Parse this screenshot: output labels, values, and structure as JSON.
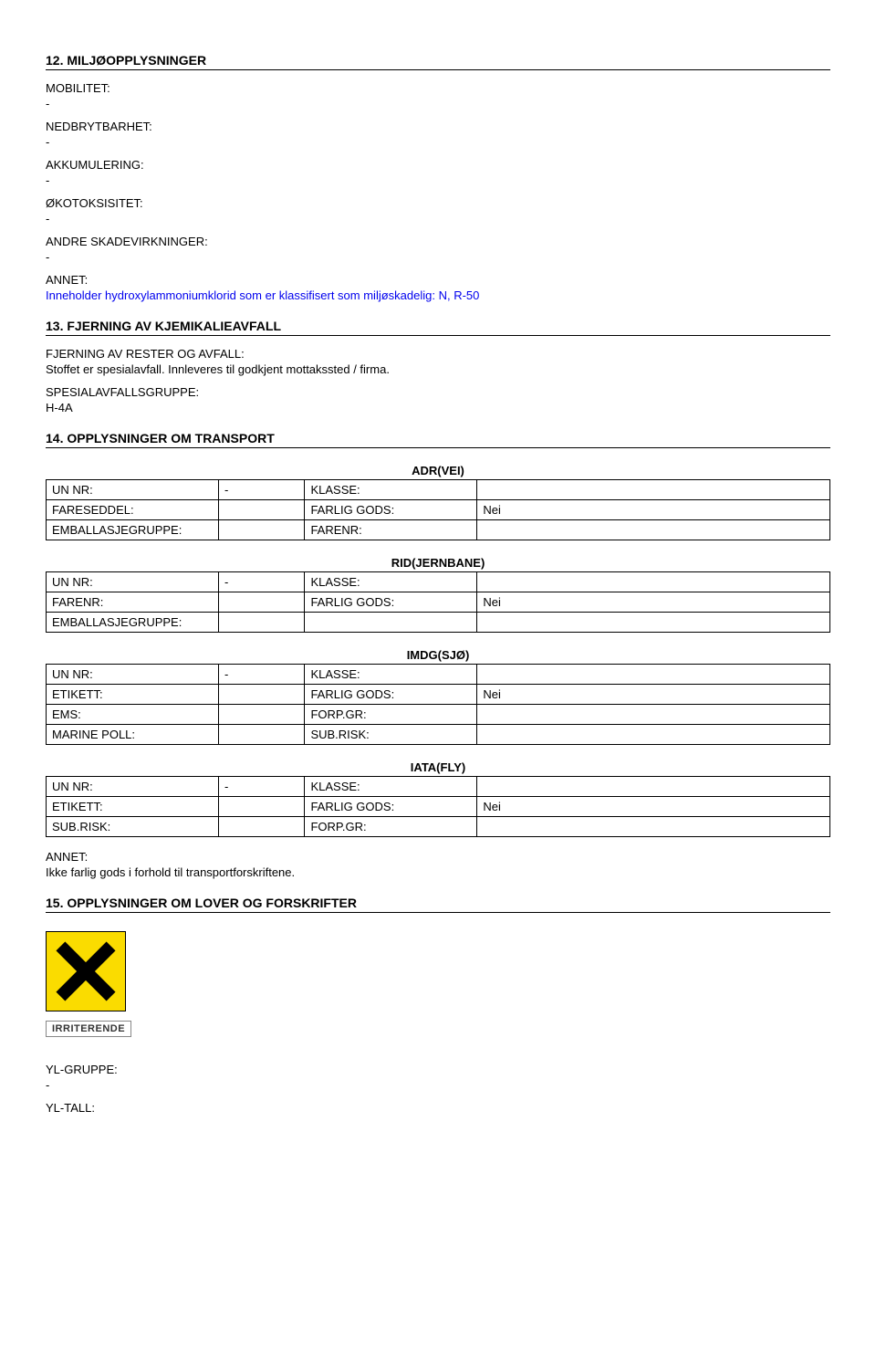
{
  "section12": {
    "heading": "12. MILJØOPPLYSNINGER",
    "fields": [
      {
        "label": "MOBILITET:",
        "value": "-"
      },
      {
        "label": "NEDBRYTBARHET:",
        "value": "-"
      },
      {
        "label": "AKKUMULERING:",
        "value": "-"
      },
      {
        "label": "ØKOTOKSISITET:",
        "value": "-"
      },
      {
        "label": "ANDRE SKADEVIRKNINGER:",
        "value": "-"
      }
    ],
    "annet_label": "ANNET:",
    "annet_text": "Inneholder hydroxylammoniumklorid som er klassifisert som miljøskadelig: N, R-50"
  },
  "section13": {
    "heading": "13. FJERNING AV KJEMIKALIEAVFALL",
    "rester_label": "FJERNING AV RESTER OG AVFALL:",
    "rester_text": "Stoffet er spesialavfall. Innleveres til godkjent mottakssted / firma.",
    "gruppe_label": "SPESIALAVFALLSGRUPPE:",
    "gruppe_value": "H-4A"
  },
  "section14": {
    "heading": "14. OPPLYSNINGER OM TRANSPORT",
    "tables": {
      "adr": {
        "title": "ADR(VEI)",
        "rows": [
          [
            "UN NR:",
            "-",
            "KLASSE:",
            ""
          ],
          [
            "FARESEDDEL:",
            "",
            "FARLIG GODS:",
            "Nei"
          ],
          [
            "EMBALLASJEGRUPPE:",
            "",
            "FARENR:",
            ""
          ]
        ]
      },
      "rid": {
        "title": "RID(JERNBANE)",
        "rows": [
          [
            "UN NR:",
            "-",
            "KLASSE:",
            ""
          ],
          [
            "FARENR:",
            "",
            "FARLIG GODS:",
            "Nei"
          ],
          [
            "EMBALLASJEGRUPPE:",
            "",
            "",
            ""
          ]
        ]
      },
      "imdg": {
        "title": "IMDG(SJØ)",
        "rows": [
          [
            "UN NR:",
            "-",
            "KLASSE:",
            ""
          ],
          [
            "ETIKETT:",
            "",
            "FARLIG GODS:",
            "Nei"
          ],
          [
            "EMS:",
            "",
            "FORP.GR:",
            ""
          ],
          [
            "MARINE POLL:",
            "",
            "SUB.RISK:",
            ""
          ]
        ]
      },
      "iata": {
        "title": "IATA(FLY)",
        "rows": [
          [
            "UN NR:",
            "-",
            "KLASSE:",
            ""
          ],
          [
            "ETIKETT:",
            "",
            "FARLIG GODS:",
            "Nei"
          ],
          [
            "SUB.RISK:",
            "",
            "FORP.GR:",
            ""
          ]
        ]
      }
    },
    "annet_label": "ANNET:",
    "annet_text": "Ikke farlig gods i forhold til transportforskriftene."
  },
  "section15": {
    "heading": "15. OPPLYSNINGER OM LOVER OG FORSKRIFTER",
    "hazard_caption": "IRRITERENDE",
    "hazard_bg": "#fadc00",
    "ylgruppe_label": "YL-GRUPPE:",
    "ylgruppe_value": "-",
    "yltall_label": "YL-TALL:"
  }
}
